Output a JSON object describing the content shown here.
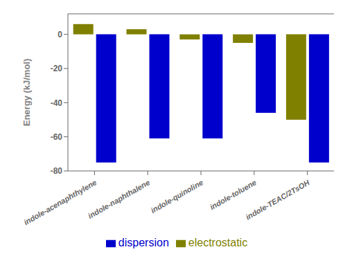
{
  "chart_data": {
    "type": "bar",
    "categories": [
      "indole-acenaphthylene",
      "indole-naphthalene",
      "indole-quinoline",
      "indole-toluene",
      "indole-TEAC/2TsOH"
    ],
    "series": [
      {
        "name": "electrostatic",
        "color": "#808000",
        "values": [
          6.0,
          3.0,
          -3.0,
          -5.0,
          -50.0
        ]
      },
      {
        "name": "dispersion",
        "color": "#0000cd",
        "values": [
          -75.0,
          -61.0,
          -61.0,
          -46.0,
          -75.0
        ]
      }
    ],
    "ylabel": "Energy (kJ/mol)",
    "ylim": [
      -80,
      12
    ],
    "yticks": [
      0,
      -20,
      -40,
      -60,
      -80
    ],
    "grid": false,
    "legend": "bottom"
  }
}
